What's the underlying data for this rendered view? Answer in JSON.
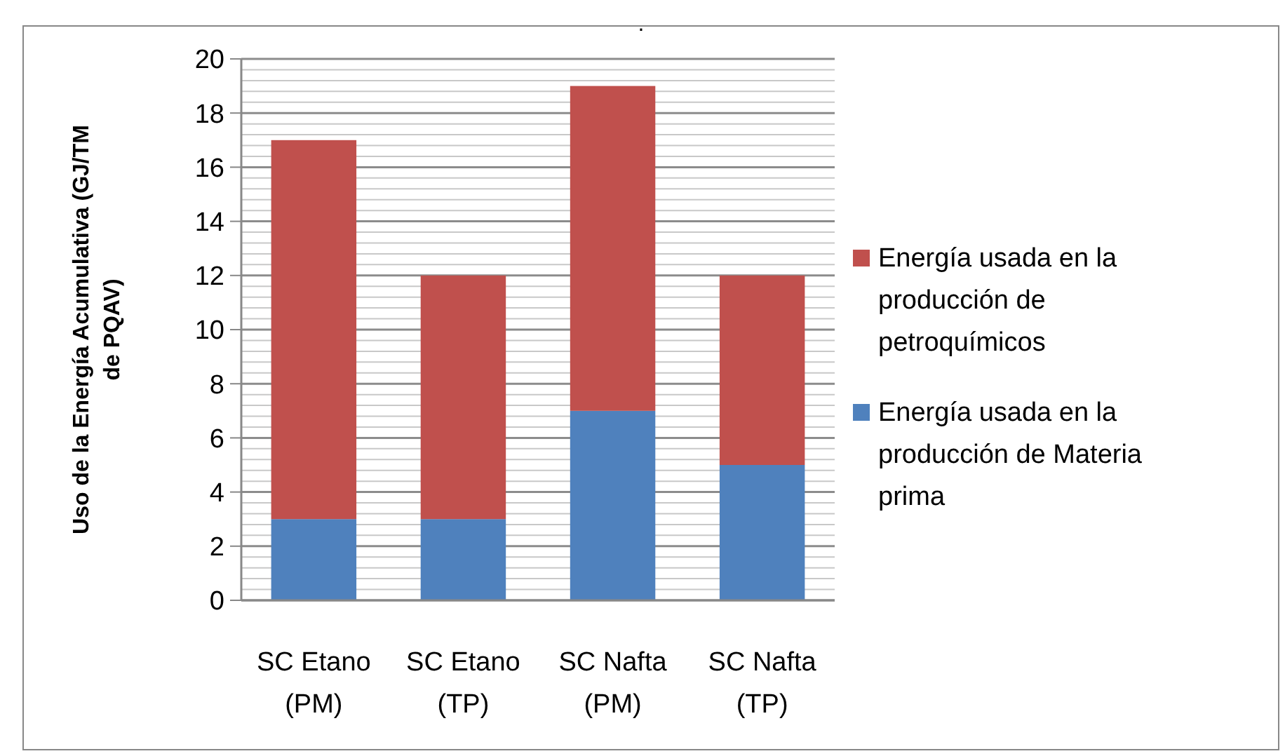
{
  "chart_data": {
    "type": "bar",
    "title": ".",
    "ylabel": "Uso de la Energía Acumulativa (GJ/TM de PQAV)",
    "categories": [
      "SC Etano (PM)",
      "SC Etano (TP)",
      "SC Nafta (PM)",
      "SC Nafta (TP)"
    ],
    "stacked": true,
    "series": [
      {
        "name": "Energía usada en la producción de Materia prima",
        "color": "#4f81bd",
        "values": [
          3,
          3,
          7,
          5
        ]
      },
      {
        "name": "Energía usada en la producción de petroquímicos",
        "color": "#c0504d",
        "values": [
          14,
          9,
          12,
          7
        ]
      }
    ],
    "ylim": [
      0,
      20
    ],
    "yticks": [
      0,
      {
        "value": 0.4,
        "label": null
      },
      {
        "value": 0.8,
        "label": null
      },
      {
        "value": 1.2,
        "label": null
      },
      {
        "value": 1.6,
        "label": null
      },
      2,
      {
        "value": 2.4,
        "label": null
      },
      {
        "value": 2.8,
        "label": null
      },
      {
        "value": 3.2,
        "label": null
      },
      {
        "value": 3.6,
        "label": null
      },
      4,
      {
        "value": 4.4,
        "label": null
      },
      {
        "value": 4.8,
        "label": null
      },
      {
        "value": 5.2,
        "label": null
      },
      {
        "value": 5.6,
        "label": null
      },
      6,
      {
        "value": 6.4,
        "label": null
      },
      {
        "value": 6.8,
        "label": null
      },
      {
        "value": 7.2,
        "label": null
      },
      {
        "value": 7.6,
        "label": null
      },
      8,
      {
        "value": 8.4,
        "label": null
      },
      {
        "value": 8.8,
        "label": null
      },
      {
        "value": 9.2,
        "label": null
      },
      {
        "value": 9.6,
        "label": null
      },
      10,
      {
        "value": 10.4,
        "label": null
      },
      {
        "value": 10.8,
        "label": null
      },
      {
        "value": 11.2,
        "label": null
      },
      {
        "value": 11.6,
        "label": null
      },
      12,
      {
        "value": 12.4,
        "label": null
      },
      {
        "value": 12.8,
        "label": null
      },
      {
        "value": 13.2,
        "label": null
      },
      {
        "value": 13.6,
        "label": null
      },
      14,
      {
        "value": 14.4,
        "label": null
      },
      {
        "value": 14.8,
        "label": null
      },
      {
        "value": 15.2,
        "label": null
      },
      {
        "value": 15.6,
        "label": null
      },
      16,
      {
        "value": 16.4,
        "label": null
      },
      {
        "value": 16.8,
        "label": null
      },
      {
        "value": 17.2,
        "label": null
      },
      {
        "value": 17.6,
        "label": null
      },
      18,
      {
        "value": 18.4,
        "label": null
      },
      {
        "value": 18.8,
        "label": null
      },
      {
        "value": 19.2,
        "label": null
      },
      {
        "value": 19.6,
        "label": null
      },
      20
    ],
    "grid": "y",
    "legend": "right"
  }
}
